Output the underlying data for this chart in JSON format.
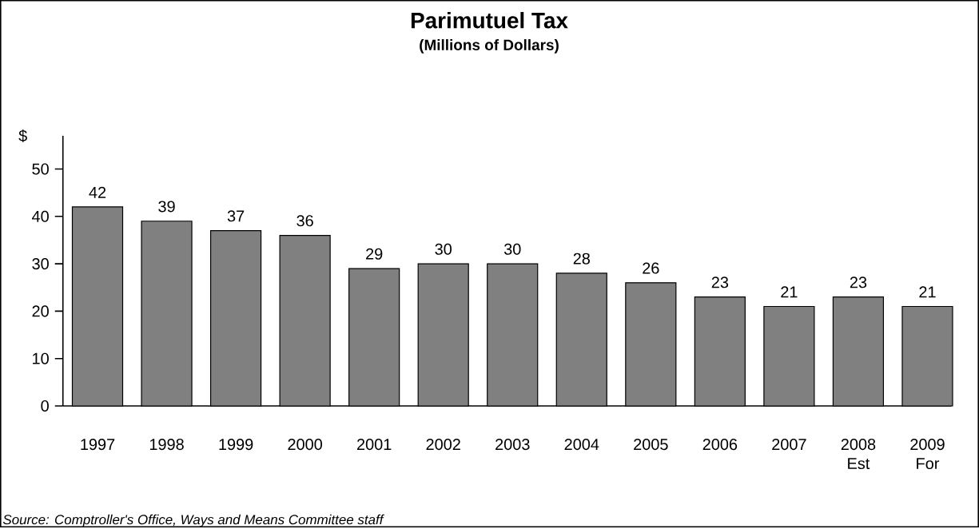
{
  "chart_data": {
    "type": "bar",
    "title": "Parimutuel Tax",
    "subtitle": "(Millions of Dollars)",
    "ylabel": "$",
    "categories": [
      "1997",
      "1998",
      "1999",
      "2000",
      "2001",
      "2002",
      "2003",
      "2004",
      "2005",
      "2006",
      "2007",
      "2008 Est",
      "2009 For"
    ],
    "values": [
      42,
      39,
      37,
      36,
      29,
      30,
      30,
      28,
      26,
      23,
      21,
      23,
      21
    ],
    "color": "#808080",
    "ylim": [
      0,
      57
    ],
    "yticks": [
      0,
      10,
      20,
      30,
      40,
      50
    ],
    "data_labels": true,
    "annotations": [
      "Source: Comptroller's Office, Ways and Means Committee staff"
    ]
  }
}
